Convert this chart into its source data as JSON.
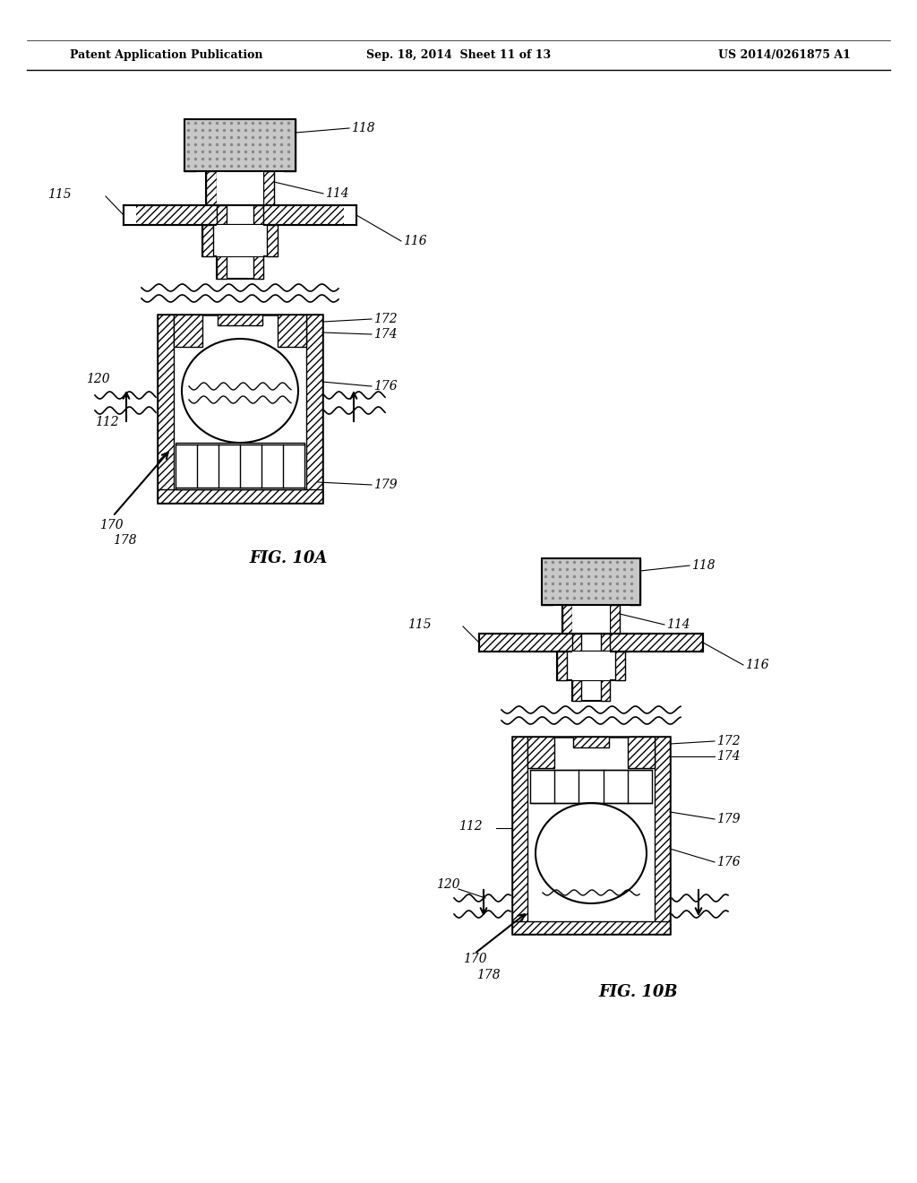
{
  "title_left": "Patent Application Publication",
  "title_mid": "Sep. 18, 2014  Sheet 11 of 13",
  "title_right": "US 2014/0261875 A1",
  "fig_a_label": "FIG. 10A",
  "fig_b_label": "FIG. 10B",
  "bg_color": "#ffffff"
}
